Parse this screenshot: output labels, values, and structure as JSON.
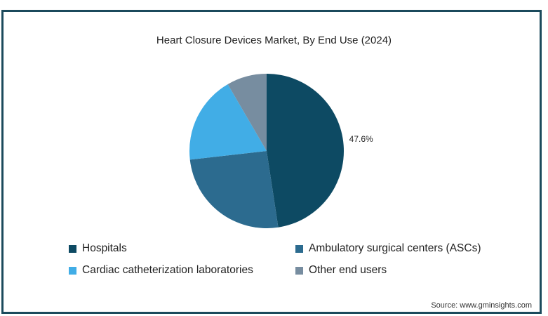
{
  "chart_data": {
    "type": "pie",
    "title": "Heart Closure Devices Market, By End Use (2024)",
    "categories": [
      "Hospitals",
      "Ambulatory surgical centers (ASCs)",
      "Cardiac catheterization laboratories",
      "Other end users"
    ],
    "values": [
      47.6,
      25.6,
      18.4,
      8.4
    ],
    "colors": [
      "#0d4a63",
      "#2c6b8f",
      "#41ade6",
      "#778da0"
    ],
    "data_labels": [
      {
        "category": "Hospitals",
        "text": "47.6%"
      }
    ],
    "legend_position": "bottom"
  },
  "source": "Source: www.gminsights.com"
}
